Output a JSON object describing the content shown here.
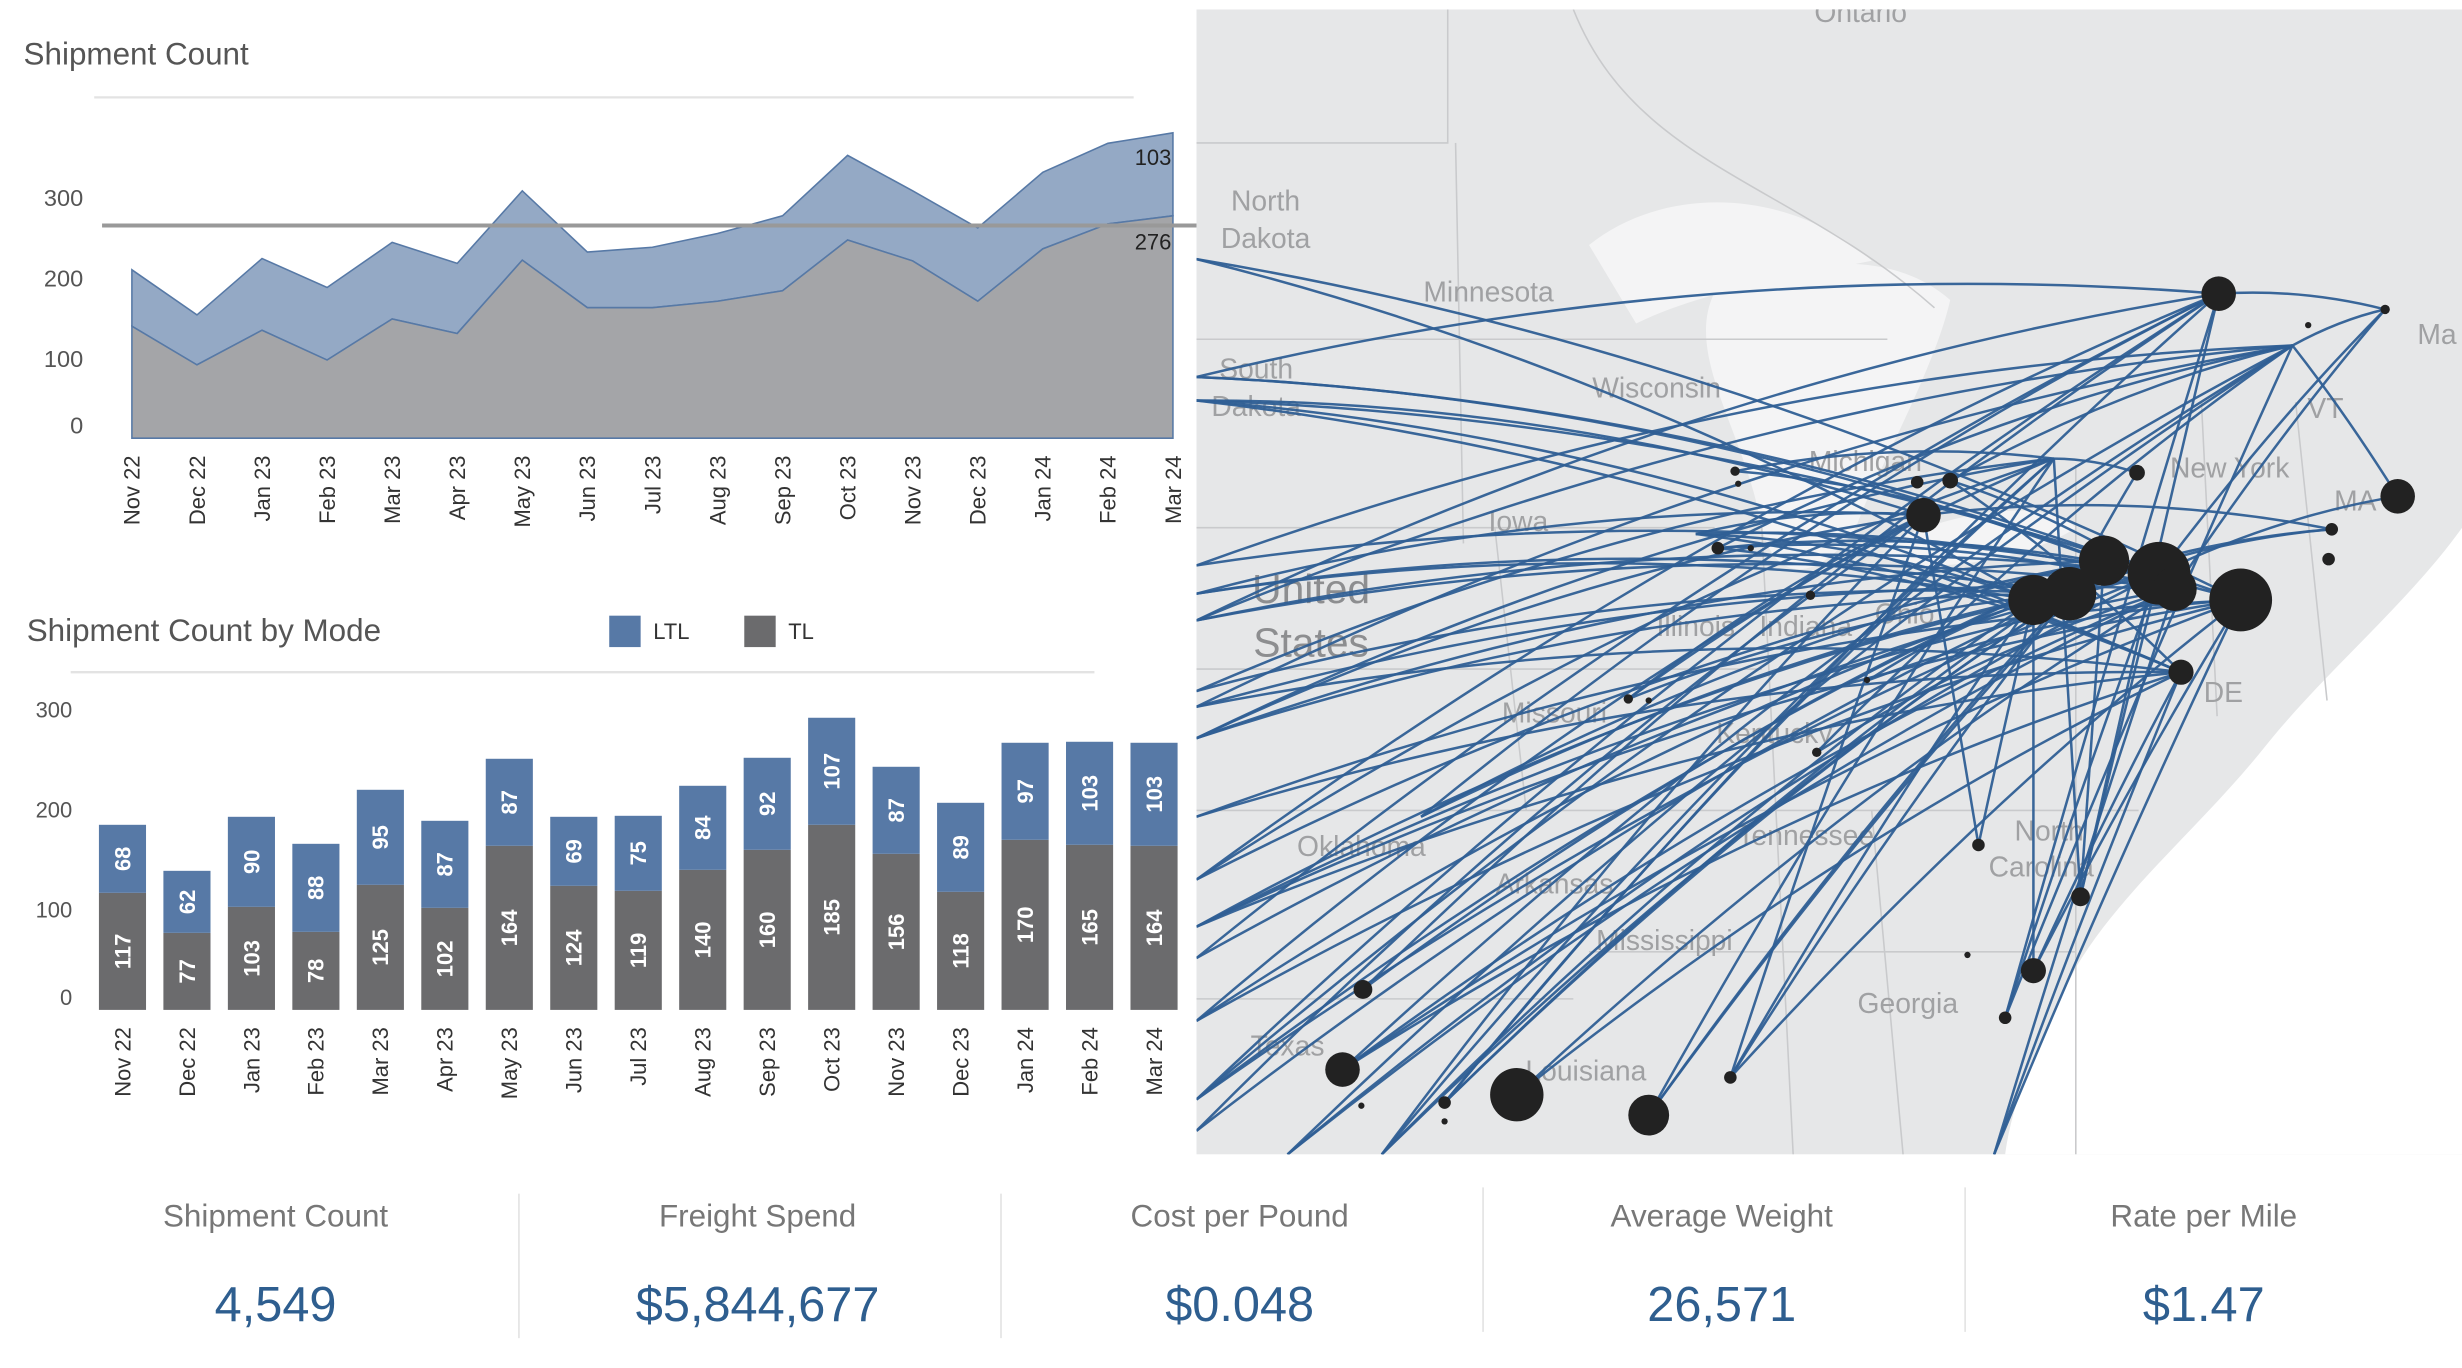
{
  "area_chart": {
    "title": "Shipment Count",
    "chart_data": {
      "type": "area",
      "stacked": true,
      "categories": [
        "Nov 22",
        "Dec 22",
        "Jan 23",
        "Feb 23",
        "Mar 23",
        "Apr 23",
        "May 23",
        "Jun 23",
        "Jul 23",
        "Aug 23",
        "Sep 23",
        "Oct 23",
        "Nov 23",
        "Dec 23",
        "Jan 24",
        "Feb 24",
        "Mar 24"
      ],
      "series": [
        {
          "values": [
            139,
            91,
            134,
            97,
            148,
            130,
            221,
            162,
            162,
            170,
            183,
            246,
            220,
            170,
            235,
            266,
            276
          ],
          "color": "#a4a5a8"
        },
        {
          "values": [
            70,
            62,
            89,
            90,
            95,
            87,
            86,
            69,
            75,
            84,
            93,
            105,
            87,
            91,
            95,
            100,
            103
          ],
          "color": "#94a9c5"
        }
      ],
      "reference_line": 264,
      "end_labels": [
        "276",
        "103"
      ],
      "yticks": [
        "0",
        "100",
        "200",
        "300"
      ],
      "ylim": [
        0,
        390
      ],
      "grid": false
    }
  },
  "bar_chart": {
    "title": "Shipment Count by Mode",
    "legend": [
      {
        "label": "LTL",
        "color": "#5779a6"
      },
      {
        "label": "TL",
        "color": "#6b6b6d"
      }
    ],
    "chart_data": {
      "type": "bar",
      "stacked": true,
      "categories": [
        "Nov 22",
        "Dec 22",
        "Jan 23",
        "Feb 23",
        "Mar 23",
        "Apr 23",
        "May 23",
        "Jun 23",
        "Jul 23",
        "Aug 23",
        "Sep 23",
        "Oct 23",
        "Nov 23",
        "Dec 23",
        "Jan 24",
        "Feb 24",
        "Mar 24"
      ],
      "series": [
        {
          "name": "TL",
          "values": [
            117,
            77,
            103,
            78,
            125,
            102,
            164,
            124,
            119,
            140,
            160,
            185,
            156,
            118,
            170,
            165,
            164
          ],
          "color": "#6b6b6d"
        },
        {
          "name": "LTL",
          "values": [
            68,
            62,
            90,
            88,
            95,
            87,
            87,
            69,
            75,
            84,
            92,
            107,
            87,
            89,
            97,
            103,
            103
          ],
          "color": "#5779a6"
        }
      ],
      "yticks": [
        "0",
        "100",
        "200",
        "300"
      ],
      "ylim": [
        0,
        300
      ],
      "legend_position": "top"
    }
  },
  "map": {
    "line_color": "#2f5f95",
    "dot_color": "#222222",
    "labels": [
      "Ontario",
      "North",
      "Dakota",
      "Minnesota",
      "South",
      "Dakota",
      "Wisconsin",
      "Michigan",
      "Iowa",
      "United",
      "States",
      "Illinois",
      "Indiana",
      "Ohio",
      "New York",
      "VT",
      "MA",
      "Ma",
      "DE",
      "Missouri",
      "Kentucky",
      "Tennessee",
      "North",
      "Carolina",
      "Oklahoma",
      "Arkansas",
      "Mississippi",
      "Georgia",
      "Texas",
      "Louisiana"
    ]
  },
  "kpis": [
    {
      "label": "Shipment Count",
      "value": "4,549"
    },
    {
      "label": "Freight Spend",
      "value": "$5,844,677"
    },
    {
      "label": "Cost per Pound",
      "value": "$0.048"
    },
    {
      "label": "Average Weight",
      "value": "26,571"
    },
    {
      "label": "Rate per Mile",
      "value": "$1.47"
    }
  ]
}
